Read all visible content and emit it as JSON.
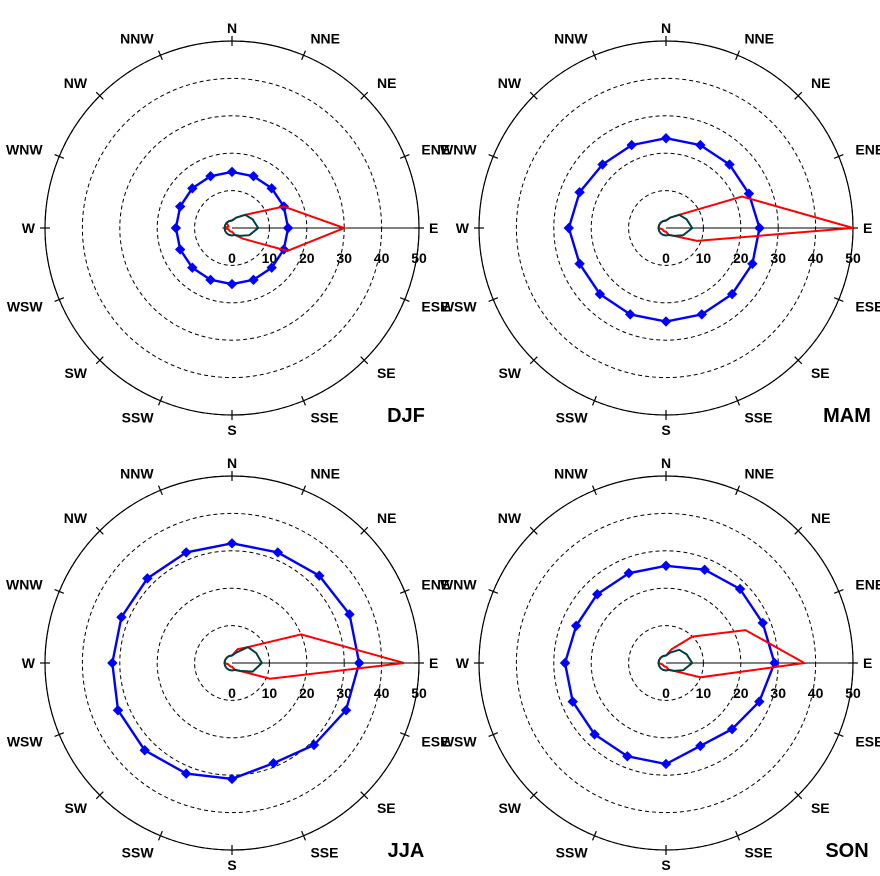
{
  "chart_data": [
    {
      "type": "radar",
      "title": "DJF",
      "directions": [
        "N",
        "NNE",
        "NE",
        "ENE",
        "E",
        "ESE",
        "SE",
        "SSE",
        "S",
        "SSW",
        "SW",
        "WSW",
        "W",
        "WNW",
        "NW",
        "NNW"
      ],
      "radial_ticks": [
        "0",
        "10",
        "20",
        "30",
        "40",
        "50"
      ],
      "rlim": [
        0,
        50
      ],
      "series": [
        {
          "color": "#0000ff",
          "marker": "diamond",
          "values": [
            15,
            15,
            15,
            15,
            15,
            15,
            15,
            15,
            15,
            15,
            15,
            15,
            15,
            15,
            15,
            15
          ]
        },
        {
          "color": "#ff0000",
          "marker": "none",
          "values": [
            2,
            3,
            5,
            15,
            30,
            16,
            4,
            2,
            1,
            1,
            1,
            1,
            2,
            1,
            2,
            2
          ]
        },
        {
          "color": "#004040",
          "marker": "none",
          "values": [
            2,
            3,
            5,
            6,
            7,
            5,
            3,
            2,
            2,
            2,
            2,
            2,
            2,
            2,
            2,
            2
          ]
        }
      ]
    },
    {
      "type": "radar",
      "title": "MAM",
      "directions": [
        "N",
        "NNE",
        "NE",
        "ENE",
        "E",
        "ESE",
        "SE",
        "SSE",
        "S",
        "SSW",
        "SW",
        "WSW",
        "W",
        "WNW",
        "NW",
        "NNW"
      ],
      "radial_ticks": [
        "0",
        "10",
        "20",
        "30",
        "40",
        "50"
      ],
      "rlim": [
        0,
        50
      ],
      "series": [
        {
          "color": "#0000ff",
          "marker": "diamond",
          "values": [
            24,
            24,
            24,
            24,
            25,
            25,
            25,
            25,
            25,
            25,
            25,
            25,
            26,
            25,
            24,
            24
          ]
        },
        {
          "color": "#ff0000",
          "marker": "none",
          "values": [
            2,
            3,
            5,
            22,
            50,
            9,
            3,
            2,
            1,
            1,
            1,
            1,
            2,
            2,
            2,
            2
          ]
        },
        {
          "color": "#004040",
          "marker": "none",
          "values": [
            2,
            3,
            5,
            6,
            7,
            5,
            3,
            2,
            2,
            2,
            2,
            2,
            2,
            2,
            2,
            2
          ]
        }
      ]
    },
    {
      "type": "radar",
      "title": "JJA",
      "directions": [
        "N",
        "NNE",
        "NE",
        "ENE",
        "E",
        "ESE",
        "SE",
        "SSE",
        "S",
        "SSW",
        "SW",
        "WSW",
        "W",
        "WNW",
        "NW",
        "NNW"
      ],
      "radial_ticks": [
        "0",
        "10",
        "20",
        "30",
        "40",
        "50"
      ],
      "rlim": [
        0,
        50
      ],
      "series": [
        {
          "color": "#0000ff",
          "marker": "diamond",
          "values": [
            32,
            32,
            33,
            34,
            34,
            33,
            31,
            29,
            31,
            32,
            33,
            33,
            32,
            32,
            32,
            32
          ]
        },
        {
          "color": "#ff0000",
          "marker": "none",
          "values": [
            2,
            4,
            6,
            20,
            46,
            11,
            3,
            2,
            1,
            1,
            1,
            1,
            2,
            2,
            2,
            2
          ]
        },
        {
          "color": "#004040",
          "marker": "none",
          "values": [
            2,
            3,
            6,
            7,
            8,
            6,
            3,
            2,
            2,
            2,
            2,
            2,
            2,
            2,
            2,
            2
          ]
        }
      ]
    },
    {
      "type": "radar",
      "title": "SON",
      "directions": [
        "N",
        "NNE",
        "NE",
        "ENE",
        "E",
        "ESE",
        "SE",
        "SSE",
        "S",
        "SSW",
        "SW",
        "WSW",
        "W",
        "WNW",
        "NW",
        "NNW"
      ],
      "radial_ticks": [
        "0",
        "10",
        "20",
        "30",
        "40",
        "50"
      ],
      "rlim": [
        0,
        50
      ],
      "series": [
        {
          "color": "#0000ff",
          "marker": "diamond",
          "values": [
            26,
            27,
            28,
            28,
            29,
            27,
            25,
            24,
            27,
            27,
            27,
            27,
            27,
            26,
            26,
            26
          ]
        },
        {
          "color": "#ff0000",
          "marker": "none",
          "values": [
            2,
            4,
            10,
            23,
            37,
            10,
            3,
            2,
            1,
            1,
            1,
            1,
            2,
            2,
            2,
            2
          ]
        },
        {
          "color": "#004040",
          "marker": "none",
          "values": [
            2,
            3,
            5,
            6,
            7,
            5,
            3,
            2,
            2,
            2,
            2,
            2,
            2,
            2,
            2,
            2
          ]
        }
      ]
    }
  ]
}
